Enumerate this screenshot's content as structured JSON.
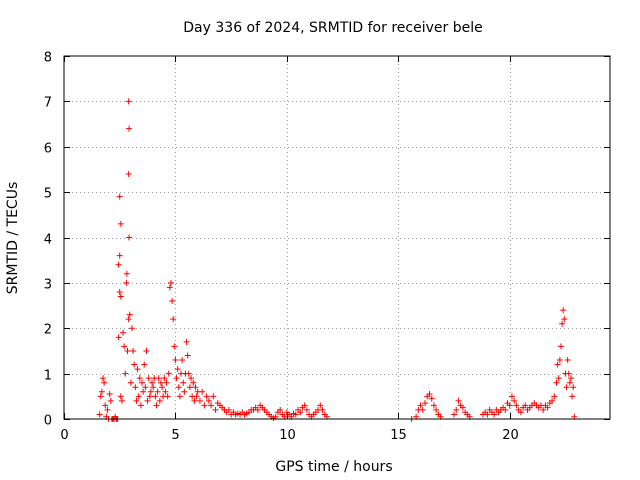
{
  "chart_data": {
    "type": "scatter",
    "title": "Day 336 of 2024, SRMTID for receiver bele",
    "xlabel": "GPS time / hours",
    "ylabel": "SRMTID / TECUs",
    "xlim": [
      0,
      24.5
    ],
    "ylim": [
      0,
      8
    ],
    "xticks": [
      0,
      5,
      10,
      15,
      20
    ],
    "yticks": [
      0,
      1,
      2,
      3,
      4,
      5,
      6,
      7,
      8
    ],
    "grid": true,
    "marker": "+",
    "color": "#ff0000",
    "series": [
      {
        "name": "SRMTID",
        "points": [
          [
            1.6,
            0.1
          ],
          [
            1.65,
            0.5
          ],
          [
            1.7,
            0.6
          ],
          [
            1.75,
            0.9
          ],
          [
            1.8,
            0.8
          ],
          [
            1.85,
            0.3
          ],
          [
            1.9,
            0.05
          ],
          [
            1.95,
            0.2
          ],
          [
            2.0,
            0.0
          ],
          [
            2.05,
            0.55
          ],
          [
            2.1,
            0.4
          ],
          [
            2.15,
            0.0
          ],
          [
            2.2,
            0.0
          ],
          [
            2.25,
            0.0
          ],
          [
            2.3,
            0.05
          ],
          [
            2.35,
            0.0
          ],
          [
            2.4,
            0.0
          ],
          [
            2.45,
            1.8
          ],
          [
            2.5,
            4.9
          ],
          [
            2.55,
            4.3
          ],
          [
            2.5,
            3.6
          ],
          [
            2.45,
            3.4
          ],
          [
            2.5,
            2.8
          ],
          [
            2.55,
            2.7
          ],
          [
            2.55,
            0.5
          ],
          [
            2.6,
            0.4
          ],
          [
            2.65,
            1.9
          ],
          [
            2.7,
            1.6
          ],
          [
            2.75,
            1.0
          ],
          [
            2.8,
            3.0
          ],
          [
            2.82,
            3.2
          ],
          [
            2.85,
            1.5
          ],
          [
            2.9,
            7.0
          ],
          [
            2.92,
            6.4
          ],
          [
            2.9,
            5.4
          ],
          [
            2.92,
            4.0
          ],
          [
            2.95,
            2.3
          ],
          [
            2.9,
            2.2
          ],
          [
            3.0,
            0.8
          ],
          [
            3.05,
            2.0
          ],
          [
            3.1,
            1.5
          ],
          [
            3.15,
            1.2
          ],
          [
            3.2,
            0.7
          ],
          [
            3.25,
            0.4
          ],
          [
            3.3,
            1.1
          ],
          [
            3.35,
            0.5
          ],
          [
            3.4,
            0.9
          ],
          [
            3.45,
            0.3
          ],
          [
            3.5,
            0.8
          ],
          [
            3.55,
            0.6
          ],
          [
            3.6,
            1.2
          ],
          [
            3.65,
            0.7
          ],
          [
            3.7,
            1.5
          ],
          [
            3.75,
            0.4
          ],
          [
            3.8,
            0.9
          ],
          [
            3.85,
            0.5
          ],
          [
            3.9,
            0.6
          ],
          [
            3.95,
            0.8
          ],
          [
            4.0,
            0.7
          ],
          [
            4.05,
            0.9
          ],
          [
            4.1,
            0.5
          ],
          [
            4.15,
            0.3
          ],
          [
            4.2,
            0.6
          ],
          [
            4.25,
            0.9
          ],
          [
            4.3,
            0.4
          ],
          [
            4.35,
            0.8
          ],
          [
            4.4,
            0.7
          ],
          [
            4.45,
            0.5
          ],
          [
            4.5,
            0.9
          ],
          [
            4.55,
            0.6
          ],
          [
            4.6,
            0.8
          ],
          [
            4.65,
            0.5
          ],
          [
            4.7,
            1.0
          ],
          [
            4.75,
            2.9
          ],
          [
            4.8,
            3.0
          ],
          [
            4.85,
            2.6
          ],
          [
            4.9,
            2.2
          ],
          [
            4.95,
            1.6
          ],
          [
            5.0,
            1.3
          ],
          [
            5.05,
            0.9
          ],
          [
            5.1,
            1.1
          ],
          [
            5.15,
            0.7
          ],
          [
            5.2,
            0.5
          ],
          [
            5.25,
            1.0
          ],
          [
            5.3,
            1.3
          ],
          [
            5.35,
            0.8
          ],
          [
            5.4,
            0.6
          ],
          [
            5.45,
            1.0
          ],
          [
            5.5,
            1.7
          ],
          [
            5.55,
            1.4
          ],
          [
            5.6,
            1.0
          ],
          [
            5.65,
            0.7
          ],
          [
            5.7,
            0.9
          ],
          [
            5.75,
            0.5
          ],
          [
            5.8,
            0.8
          ],
          [
            5.85,
            0.4
          ],
          [
            5.9,
            0.7
          ],
          [
            5.95,
            0.5
          ],
          [
            6.0,
            0.6
          ],
          [
            6.1,
            0.4
          ],
          [
            6.2,
            0.6
          ],
          [
            6.3,
            0.3
          ],
          [
            6.4,
            0.5
          ],
          [
            6.5,
            0.4
          ],
          [
            6.6,
            0.3
          ],
          [
            6.7,
            0.5
          ],
          [
            6.8,
            0.2
          ],
          [
            6.9,
            0.35
          ],
          [
            7.0,
            0.3
          ],
          [
            7.1,
            0.25
          ],
          [
            7.2,
            0.2
          ],
          [
            7.3,
            0.15
          ],
          [
            7.4,
            0.2
          ],
          [
            7.5,
            0.1
          ],
          [
            7.6,
            0.15
          ],
          [
            7.7,
            0.1
          ],
          [
            7.8,
            0.12
          ],
          [
            7.9,
            0.1
          ],
          [
            8.0,
            0.15
          ],
          [
            8.1,
            0.1
          ],
          [
            8.2,
            0.12
          ],
          [
            8.3,
            0.15
          ],
          [
            8.4,
            0.2
          ],
          [
            8.5,
            0.2
          ],
          [
            8.6,
            0.25
          ],
          [
            8.7,
            0.2
          ],
          [
            8.8,
            0.3
          ],
          [
            8.9,
            0.25
          ],
          [
            9.0,
            0.2
          ],
          [
            9.1,
            0.15
          ],
          [
            9.2,
            0.1
          ],
          [
            9.3,
            0.05
          ],
          [
            9.4,
            0.02
          ],
          [
            9.5,
            0.05
          ],
          [
            9.6,
            0.15
          ],
          [
            9.7,
            0.2
          ],
          [
            9.8,
            0.1
          ],
          [
            9.9,
            0.05
          ],
          [
            10.0,
            0.15
          ],
          [
            10.1,
            0.1
          ],
          [
            10.2,
            0.05
          ],
          [
            10.3,
            0.12
          ],
          [
            10.4,
            0.1
          ],
          [
            10.5,
            0.2
          ],
          [
            10.6,
            0.15
          ],
          [
            10.7,
            0.25
          ],
          [
            10.8,
            0.3
          ],
          [
            10.9,
            0.2
          ],
          [
            11.0,
            0.1
          ],
          [
            11.1,
            0.05
          ],
          [
            11.2,
            0.1
          ],
          [
            11.3,
            0.15
          ],
          [
            11.4,
            0.2
          ],
          [
            11.5,
            0.3
          ],
          [
            11.6,
            0.2
          ],
          [
            11.7,
            0.1
          ],
          [
            11.8,
            0.05
          ],
          [
            15.6,
            0.0
          ],
          [
            15.8,
            0.05
          ],
          [
            15.9,
            0.2
          ],
          [
            16.0,
            0.3
          ],
          [
            16.1,
            0.2
          ],
          [
            16.2,
            0.35
          ],
          [
            16.3,
            0.5
          ],
          [
            16.4,
            0.55
          ],
          [
            16.5,
            0.45
          ],
          [
            16.6,
            0.3
          ],
          [
            16.7,
            0.2
          ],
          [
            16.8,
            0.1
          ],
          [
            16.9,
            0.05
          ],
          [
            17.5,
            0.1
          ],
          [
            17.6,
            0.2
          ],
          [
            17.7,
            0.4
          ],
          [
            17.8,
            0.3
          ],
          [
            17.9,
            0.25
          ],
          [
            18.0,
            0.15
          ],
          [
            18.1,
            0.1
          ],
          [
            18.2,
            0.05
          ],
          [
            18.8,
            0.1
          ],
          [
            18.9,
            0.15
          ],
          [
            19.0,
            0.1
          ],
          [
            19.1,
            0.2
          ],
          [
            19.2,
            0.15
          ],
          [
            19.3,
            0.1
          ],
          [
            19.4,
            0.2
          ],
          [
            19.5,
            0.15
          ],
          [
            19.6,
            0.2
          ],
          [
            19.7,
            0.25
          ],
          [
            19.8,
            0.2
          ],
          [
            19.9,
            0.35
          ],
          [
            20.0,
            0.3
          ],
          [
            20.1,
            0.5
          ],
          [
            20.2,
            0.4
          ],
          [
            20.3,
            0.3
          ],
          [
            20.4,
            0.2
          ],
          [
            20.5,
            0.15
          ],
          [
            20.6,
            0.25
          ],
          [
            20.7,
            0.3
          ],
          [
            20.8,
            0.2
          ],
          [
            20.9,
            0.25
          ],
          [
            21.0,
            0.3
          ],
          [
            21.1,
            0.35
          ],
          [
            21.2,
            0.3
          ],
          [
            21.3,
            0.25
          ],
          [
            21.4,
            0.3
          ],
          [
            21.5,
            0.2
          ],
          [
            21.6,
            0.3
          ],
          [
            21.7,
            0.25
          ],
          [
            21.8,
            0.35
          ],
          [
            21.9,
            0.4
          ],
          [
            22.0,
            0.5
          ],
          [
            22.1,
            0.8
          ],
          [
            22.15,
            1.2
          ],
          [
            22.2,
            0.9
          ],
          [
            22.25,
            1.3
          ],
          [
            22.3,
            1.6
          ],
          [
            22.35,
            2.1
          ],
          [
            22.4,
            2.4
          ],
          [
            22.45,
            2.2
          ],
          [
            22.5,
            1.0
          ],
          [
            22.55,
            0.7
          ],
          [
            22.6,
            1.3
          ],
          [
            22.65,
            1.0
          ],
          [
            22.7,
            0.8
          ],
          [
            22.75,
            0.9
          ],
          [
            22.8,
            0.5
          ],
          [
            22.85,
            0.7
          ],
          [
            22.9,
            0.05
          ]
        ]
      }
    ]
  }
}
